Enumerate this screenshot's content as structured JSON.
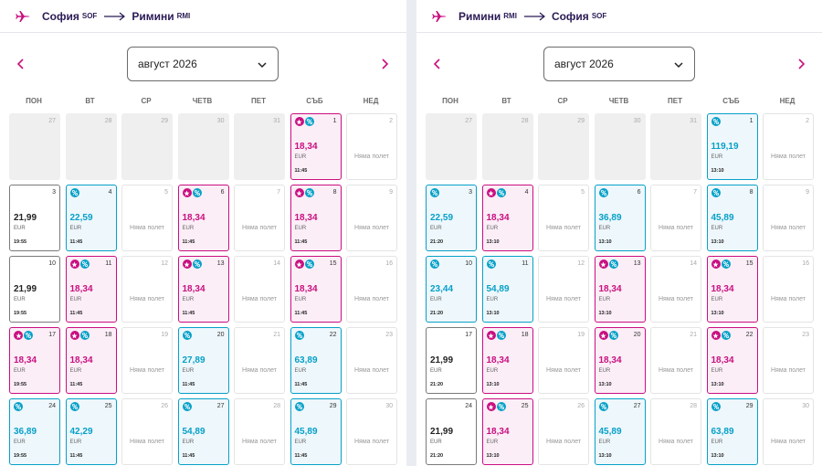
{
  "labels": {
    "no_flight": "Няма полет",
    "currency": "EUR"
  },
  "weekdays": [
    "ПОН",
    "ВТ",
    "СР",
    "ЧЕТВ",
    "ПЕТ",
    "СЪБ",
    "НЕД"
  ],
  "colors": {
    "brand": "#c90f80",
    "discount": "#06a0c8",
    "text_dark": "#2b1a55"
  },
  "icons": {
    "plane": "plane-icon",
    "route_arrow": "arrow-right-icon",
    "prev": "chevron-left-icon",
    "next": "chevron-right-icon",
    "month_dropdown": "chevron-down-icon",
    "star_badge": "star-badge-icon",
    "discount_badge": "discount-badge-icon"
  },
  "panels": [
    {
      "from_city": "София",
      "from_code": "SOF",
      "to_city": "Римини",
      "to_code": "RMI",
      "month": "август 2026",
      "days": [
        {
          "day": "27",
          "type": "faded"
        },
        {
          "day": "28",
          "type": "faded"
        },
        {
          "day": "29",
          "type": "faded"
        },
        {
          "day": "30",
          "type": "faded"
        },
        {
          "day": "31",
          "type": "faded"
        },
        {
          "day": "1",
          "type": "pink",
          "price": "18,34",
          "time": "11:45",
          "star": true,
          "pct": true
        },
        {
          "day": "2",
          "type": "nf"
        },
        {
          "day": "3",
          "type": "plain",
          "price": "21,99",
          "time": "19:55"
        },
        {
          "day": "4",
          "type": "blue",
          "price": "22,59",
          "time": "11:45",
          "pct": true
        },
        {
          "day": "5",
          "type": "nf"
        },
        {
          "day": "6",
          "type": "pink",
          "price": "18,34",
          "time": "11:45",
          "star": true,
          "pct": true
        },
        {
          "day": "7",
          "type": "nf"
        },
        {
          "day": "8",
          "type": "pink",
          "price": "18,34",
          "time": "11:45",
          "star": true,
          "pct": true
        },
        {
          "day": "9",
          "type": "nf"
        },
        {
          "day": "10",
          "type": "plain",
          "price": "21,99",
          "time": "19:55"
        },
        {
          "day": "11",
          "type": "pink",
          "price": "18,34",
          "time": "11:45",
          "star": true,
          "pct": true
        },
        {
          "day": "12",
          "type": "nf"
        },
        {
          "day": "13",
          "type": "pink",
          "price": "18,34",
          "time": "11:45",
          "star": true,
          "pct": true
        },
        {
          "day": "14",
          "type": "nf"
        },
        {
          "day": "15",
          "type": "pink",
          "price": "18,34",
          "time": "11:45",
          "star": true,
          "pct": true
        },
        {
          "day": "16",
          "type": "nf"
        },
        {
          "day": "17",
          "type": "pink",
          "price": "18,34",
          "time": "19:55",
          "star": true,
          "pct": true
        },
        {
          "day": "18",
          "type": "pink",
          "price": "18,34",
          "time": "11:45",
          "star": true,
          "pct": true
        },
        {
          "day": "19",
          "type": "nf"
        },
        {
          "day": "20",
          "type": "blue",
          "price": "27,89",
          "time": "11:45",
          "pct": true
        },
        {
          "day": "21",
          "type": "nf"
        },
        {
          "day": "22",
          "type": "blue",
          "price": "63,89",
          "time": "11:45",
          "pct": true
        },
        {
          "day": "23",
          "type": "nf"
        },
        {
          "day": "24",
          "type": "blue",
          "price": "36,89",
          "time": "19:55",
          "pct": true
        },
        {
          "day": "25",
          "type": "blue",
          "price": "42,29",
          "time": "11:45",
          "pct": true
        },
        {
          "day": "26",
          "type": "nf"
        },
        {
          "day": "27",
          "type": "blue",
          "price": "54,89",
          "time": "11:45",
          "pct": true
        },
        {
          "day": "28",
          "type": "nf"
        },
        {
          "day": "29",
          "type": "blue",
          "price": "45,89",
          "time": "11:45",
          "pct": true
        },
        {
          "day": "30",
          "type": "nf"
        }
      ]
    },
    {
      "from_city": "Римини",
      "from_code": "RMI",
      "to_city": "София",
      "to_code": "SOF",
      "month": "август 2026",
      "days": [
        {
          "day": "27",
          "type": "faded"
        },
        {
          "day": "28",
          "type": "faded"
        },
        {
          "day": "29",
          "type": "faded"
        },
        {
          "day": "30",
          "type": "faded"
        },
        {
          "day": "31",
          "type": "faded"
        },
        {
          "day": "1",
          "type": "blue",
          "price": "119,19",
          "time": "13:10",
          "pct": true
        },
        {
          "day": "2",
          "type": "nf"
        },
        {
          "day": "3",
          "type": "blue",
          "price": "22,59",
          "time": "21:20",
          "pct": true
        },
        {
          "day": "4",
          "type": "pink",
          "price": "18,34",
          "time": "13:10",
          "star": true,
          "pct": true
        },
        {
          "day": "5",
          "type": "nf"
        },
        {
          "day": "6",
          "type": "blue",
          "price": "36,89",
          "time": "13:10",
          "pct": true
        },
        {
          "day": "7",
          "type": "nf"
        },
        {
          "day": "8",
          "type": "blue",
          "price": "45,89",
          "time": "13:10",
          "pct": true
        },
        {
          "day": "9",
          "type": "nf"
        },
        {
          "day": "10",
          "type": "blue",
          "price": "23,44",
          "time": "21:20",
          "pct": true
        },
        {
          "day": "11",
          "type": "blue",
          "price": "54,89",
          "time": "13:10",
          "pct": true
        },
        {
          "day": "12",
          "type": "nf"
        },
        {
          "day": "13",
          "type": "pink",
          "price": "18,34",
          "time": "13:10",
          "star": true,
          "pct": true
        },
        {
          "day": "14",
          "type": "nf"
        },
        {
          "day": "15",
          "type": "pink",
          "price": "18,34",
          "time": "13:10",
          "star": true,
          "pct": true
        },
        {
          "day": "16",
          "type": "nf"
        },
        {
          "day": "17",
          "type": "plain",
          "price": "21,99",
          "time": "21:20"
        },
        {
          "day": "18",
          "type": "pink",
          "price": "18,34",
          "time": "13:10",
          "star": true,
          "pct": true
        },
        {
          "day": "19",
          "type": "nf"
        },
        {
          "day": "20",
          "type": "pink",
          "price": "18,34",
          "time": "13:10",
          "star": true,
          "pct": true
        },
        {
          "day": "21",
          "type": "nf"
        },
        {
          "day": "22",
          "type": "pink",
          "price": "18,34",
          "time": "13:10",
          "star": true,
          "pct": true
        },
        {
          "day": "23",
          "type": "nf"
        },
        {
          "day": "24",
          "type": "plain",
          "price": "21,99",
          "time": "21:20"
        },
        {
          "day": "25",
          "type": "pink",
          "price": "18,34",
          "time": "13:10",
          "star": true,
          "pct": true
        },
        {
          "day": "26",
          "type": "nf"
        },
        {
          "day": "27",
          "type": "blue",
          "price": "45,89",
          "time": "13:10",
          "pct": true
        },
        {
          "day": "28",
          "type": "nf"
        },
        {
          "day": "29",
          "type": "blue",
          "price": "63,89",
          "time": "13:10",
          "pct": true
        },
        {
          "day": "30",
          "type": "nf"
        }
      ]
    }
  ]
}
